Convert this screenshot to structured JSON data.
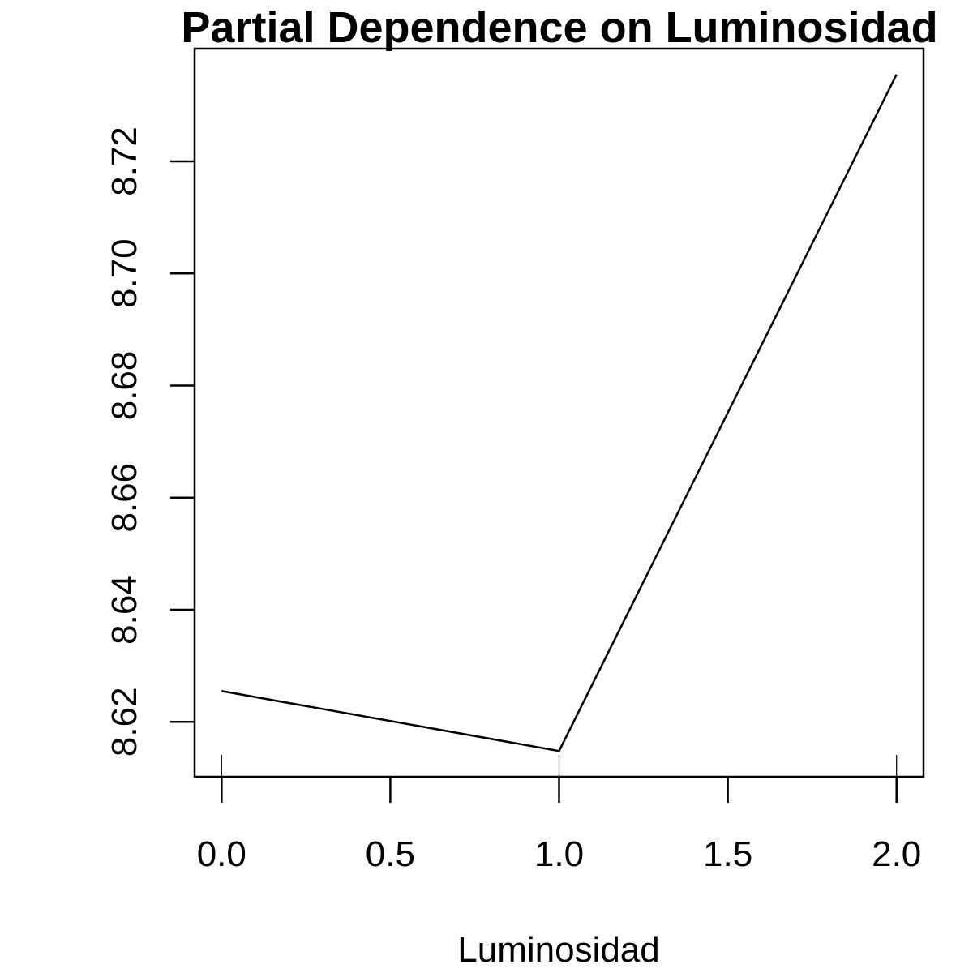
{
  "chart_data": {
    "type": "line",
    "title": "Partial Dependence on Luminosidad",
    "xlabel": "Luminosidad",
    "ylabel": "",
    "x": [
      0,
      1,
      2
    ],
    "y": [
      8.6255,
      8.6148,
      8.7355
    ],
    "xlim": [
      -0.08,
      2.08
    ],
    "ylim": [
      8.6102,
      8.7401
    ],
    "x_ticks": [
      0,
      0.5,
      1,
      1.5,
      2
    ],
    "x_tick_labels": [
      "0.0",
      "0.5",
      "1.0",
      "1.5",
      "2.0"
    ],
    "y_ticks": [
      8.62,
      8.64,
      8.66,
      8.68,
      8.7,
      8.72
    ],
    "y_tick_labels": [
      "8.62",
      "8.64",
      "8.66",
      "8.68",
      "8.70",
      "8.72"
    ],
    "rug_x": [
      0,
      1,
      2
    ],
    "grid": false,
    "line_color": "#000000"
  }
}
